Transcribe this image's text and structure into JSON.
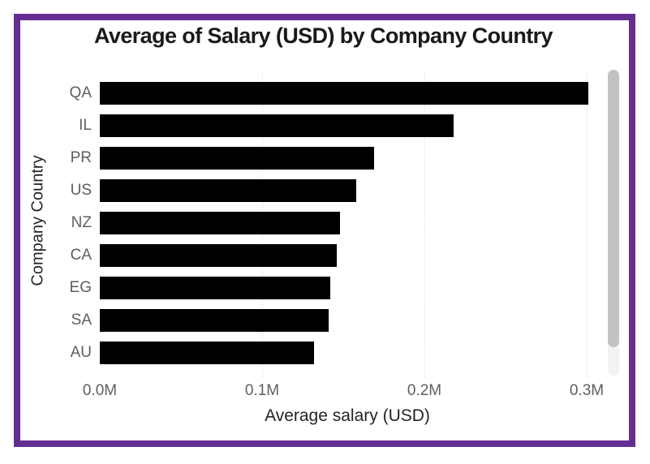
{
  "title": "Average of Salary (USD) by Company Country",
  "chart_data": {
    "type": "bar",
    "orientation": "horizontal",
    "title": "Average of Salary (USD) by Company Country",
    "xlabel": "Average salary (USD)",
    "ylabel": "Company Country",
    "categories": [
      "QA",
      "IL",
      "PR",
      "US",
      "NZ",
      "CA",
      "EG",
      "SA",
      "AU"
    ],
    "values": [
      0.301,
      0.218,
      0.169,
      0.158,
      0.148,
      0.146,
      0.142,
      0.141,
      0.132
    ],
    "unit": "M",
    "x_ticks": [
      "0.0M",
      "0.1M",
      "0.2M",
      "0.3M"
    ],
    "x_tick_values": [
      0,
      0.1,
      0.2,
      0.3
    ],
    "xlim": [
      0,
      0.309
    ],
    "grid": "vertical-dotted",
    "legend": "none",
    "bar_color": "#000000",
    "tick_label_color": "#605e5c",
    "axis_title_color": "#252423",
    "title_color": "#1c1a19"
  },
  "frame": {
    "border_color": "#662d91"
  },
  "scrollbar": {
    "thumb_color": "#c2c2c2",
    "track_color": "#f2f2f2"
  }
}
